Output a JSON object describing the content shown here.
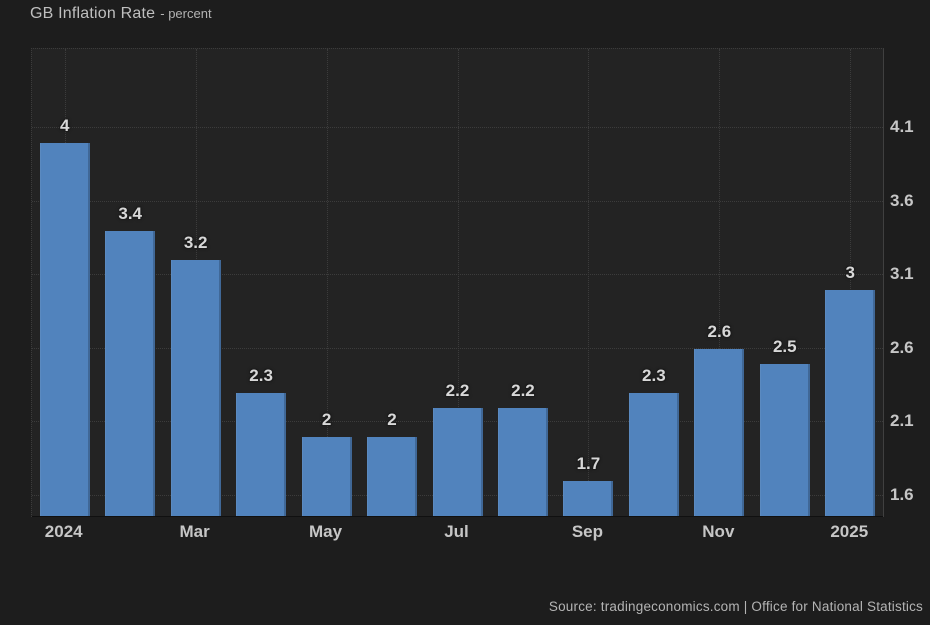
{
  "title": {
    "main": "GB Inflation Rate",
    "suffix": "- percent"
  },
  "source": "Source: tradingeconomics.com | Office for National Statistics",
  "chart_data": {
    "type": "bar",
    "title": "GB Inflation Rate",
    "ylabel": "percent",
    "xlabel": "",
    "categories": [
      "Jan 2024",
      "Feb 2024",
      "Mar 2024",
      "Apr 2024",
      "May 2024",
      "Jun 2024",
      "Jul 2024",
      "Aug 2024",
      "Sep 2024",
      "Oct 2024",
      "Nov 2024",
      "Dec 2024",
      "Jan 2025"
    ],
    "x_tick_labels": [
      "2024",
      "",
      "Mar",
      "",
      "May",
      "",
      "Jul",
      "",
      "Sep",
      "",
      "Nov",
      "",
      "2025"
    ],
    "values": [
      4,
      3.4,
      3.2,
      2.3,
      2,
      2,
      2.2,
      2.2,
      1.7,
      2.3,
      2.6,
      2.5,
      3
    ],
    "bar_labels": [
      "4",
      "3.4",
      "3.2",
      "2.3",
      "2",
      "2",
      "2.2",
      "2.2",
      "1.7",
      "2.3",
      "2.6",
      "2.5",
      "3"
    ],
    "y_ticks": [
      "1.6",
      "2.1",
      "2.6",
      "3.1",
      "3.6",
      "4.1"
    ],
    "ylim": [
      1.457,
      4.637
    ],
    "grid": true,
    "legend": false,
    "bar_color": "#5183bd",
    "background_color": "#1d1d1d",
    "plot_background_color": "#232323"
  }
}
